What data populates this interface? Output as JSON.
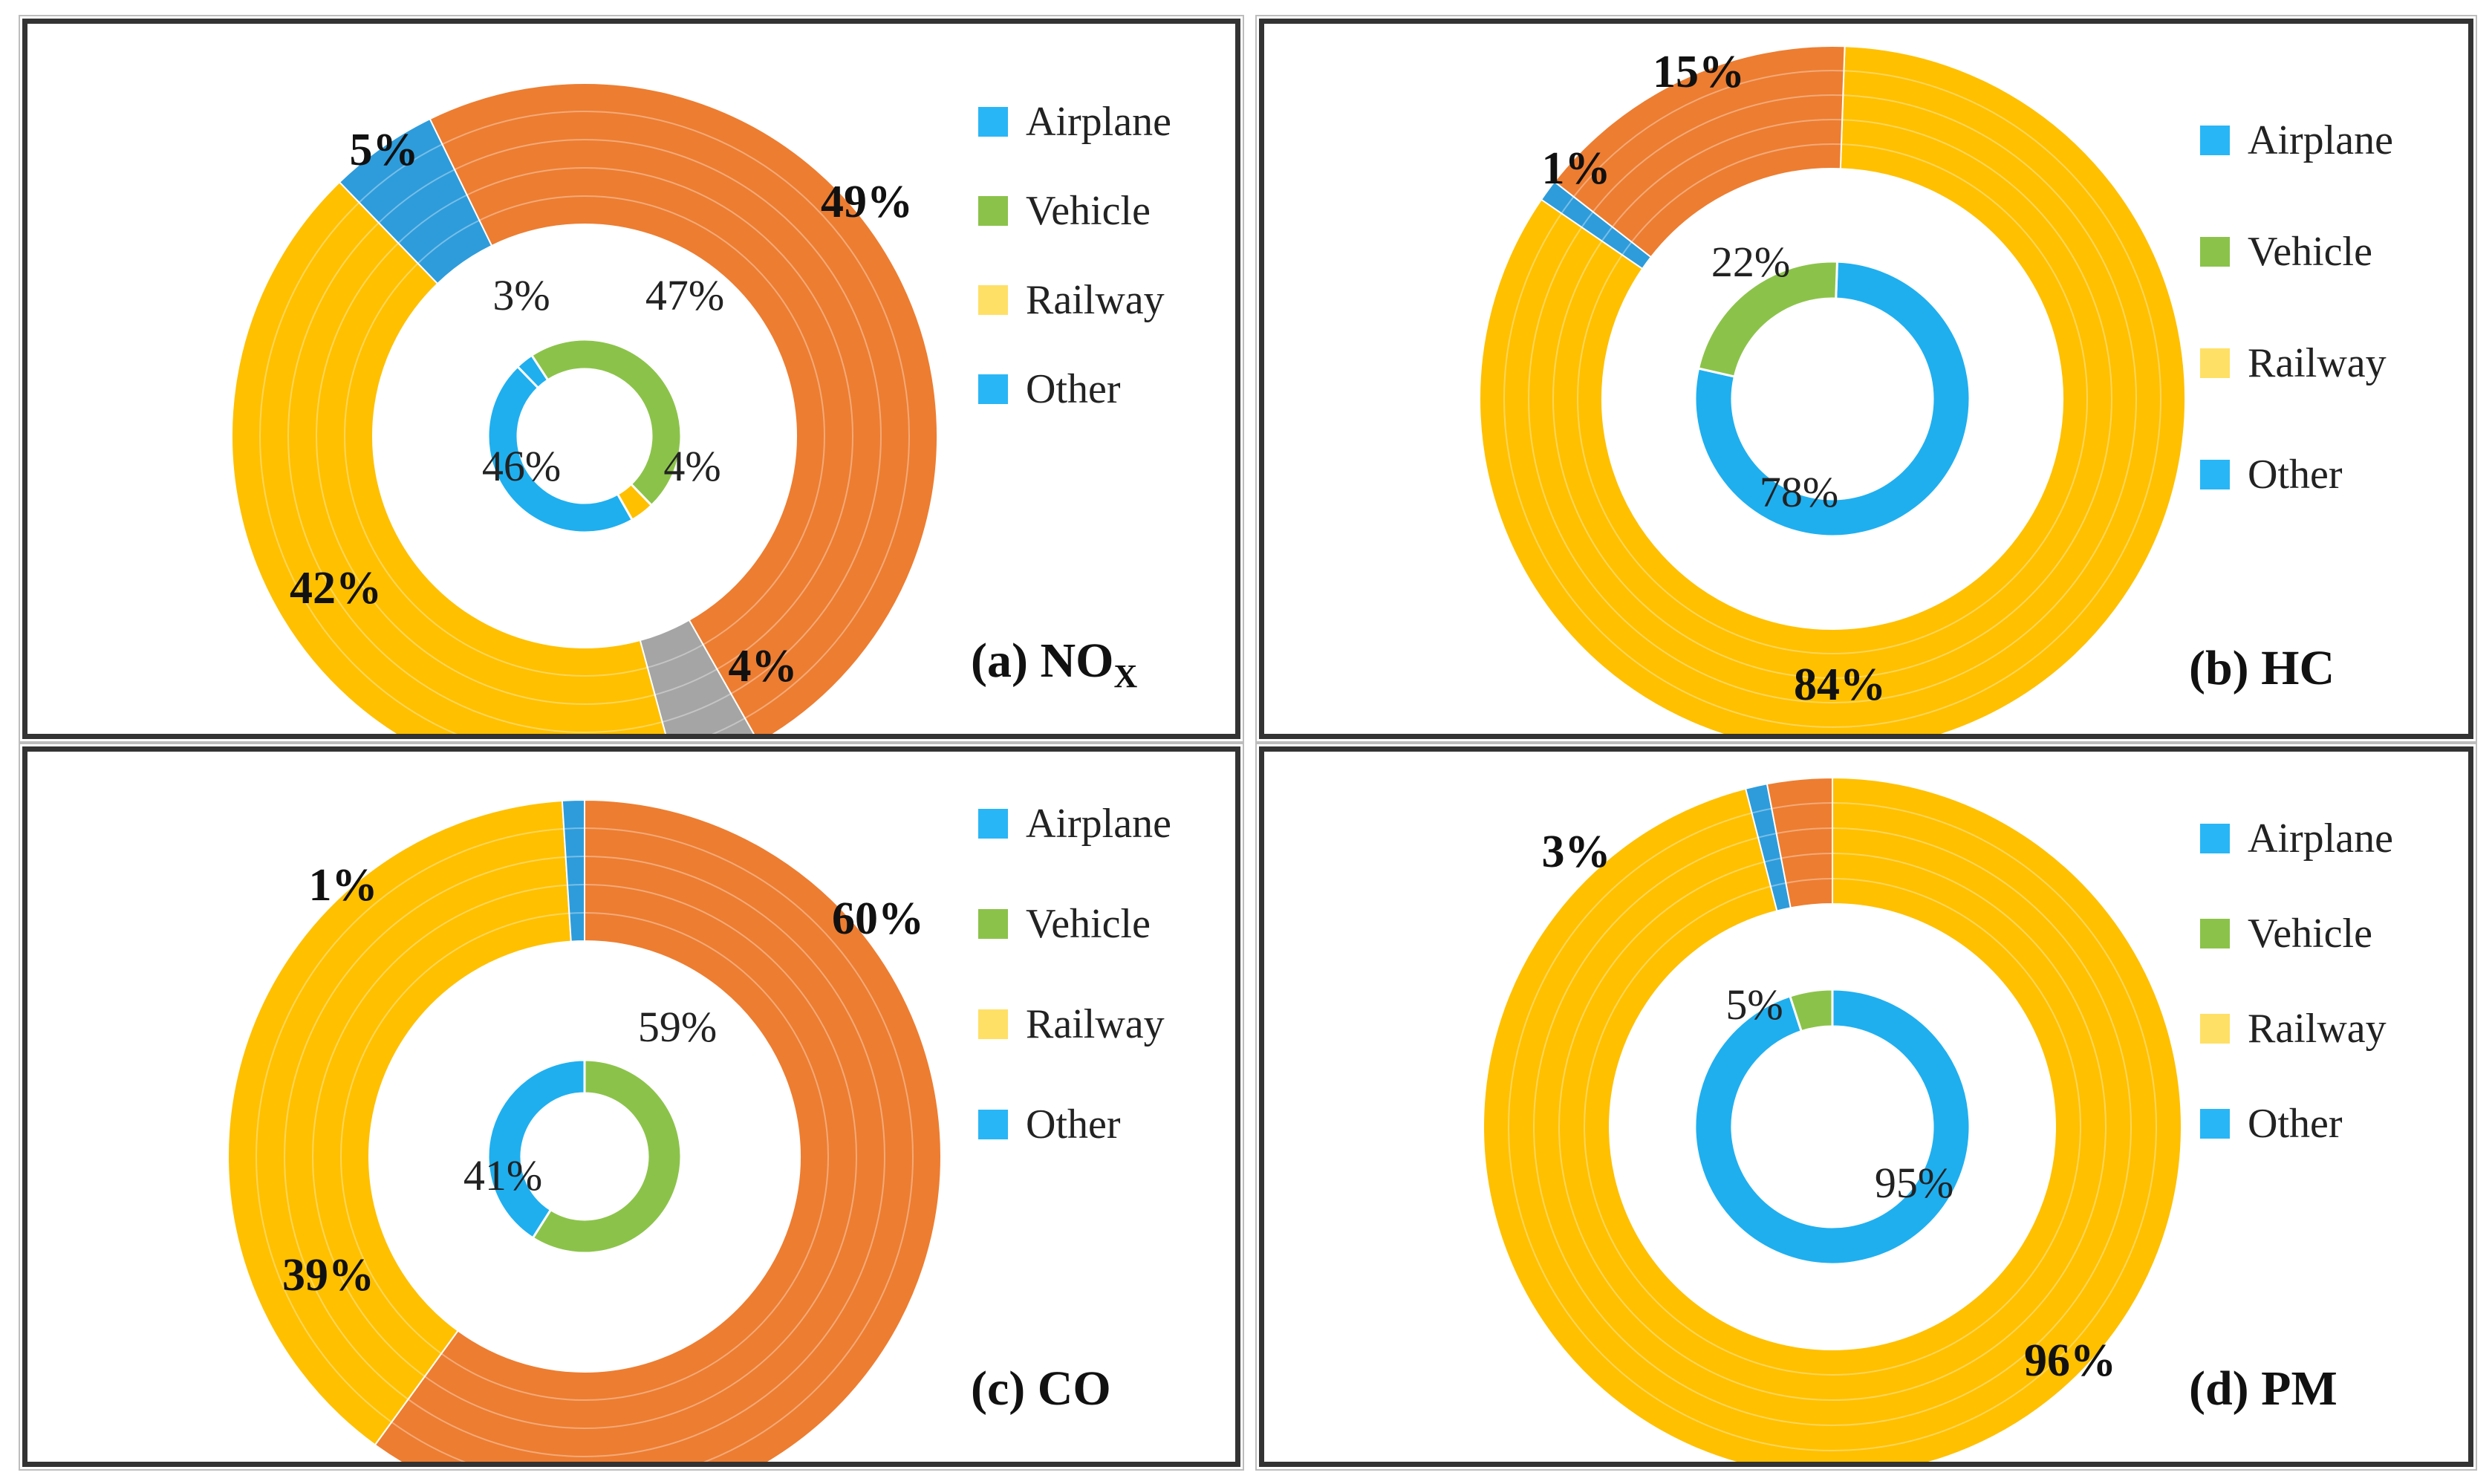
{
  "colors": {
    "airplane": "#2E9CDB",
    "vehicle": "#ED7D31",
    "railway": "#FFC000",
    "other": "#A5A5A5",
    "inner_other": "#1FAFEF",
    "inner_vehicle": "#8BC34A",
    "inner_railway": "#FFC000"
  },
  "legend": [
    {
      "label": "Airplane",
      "color": "#29B6F6"
    },
    {
      "label": "Vehicle",
      "color": "#8BC34A"
    },
    {
      "label": "Railway",
      "color": "#FFE066"
    },
    {
      "label": "Other",
      "color": "#29B6F6"
    }
  ],
  "chart_data": [
    {
      "type": "donut",
      "title": "(a) NO",
      "title_sub": "X",
      "outer": [
        {
          "category": "Airplane",
          "value": 5,
          "label": "5%"
        },
        {
          "category": "Vehicle",
          "value": 49,
          "label": "49%"
        },
        {
          "category": "Other",
          "value": 4,
          "label": "4%"
        },
        {
          "category": "Railway",
          "value": 42,
          "label": "42%"
        }
      ],
      "inner": [
        {
          "category": "Other",
          "value": 3,
          "label": "3%"
        },
        {
          "category": "Vehicle",
          "value": 47,
          "label": "47%"
        },
        {
          "category": "Railway",
          "value": 4,
          "label": "4%"
        },
        {
          "category": "Other",
          "value": 46,
          "label": "46%"
        }
      ]
    },
    {
      "type": "donut",
      "title": "(b) HC",
      "title_sub": "",
      "outer": [
        {
          "category": "Railway",
          "value": 84,
          "label": "84%"
        },
        {
          "category": "Airplane",
          "value": 1,
          "label": "1%"
        },
        {
          "category": "Vehicle",
          "value": 15,
          "label": "15%"
        }
      ],
      "inner": [
        {
          "category": "Other",
          "value": 78,
          "label": "78%"
        },
        {
          "category": "Vehicle",
          "value": 22,
          "label": "22%"
        }
      ]
    },
    {
      "type": "donut",
      "title": "(c) CO",
      "title_sub": "",
      "outer": [
        {
          "category": "Vehicle",
          "value": 60,
          "label": "60%"
        },
        {
          "category": "Railway",
          "value": 39,
          "label": "39%"
        },
        {
          "category": "Airplane",
          "value": 1,
          "label": "1%"
        }
      ],
      "inner": [
        {
          "category": "Vehicle",
          "value": 59,
          "label": "59%"
        },
        {
          "category": "Other",
          "value": 41,
          "label": "41%"
        }
      ]
    },
    {
      "type": "donut",
      "title": "(d) PM",
      "title_sub": "",
      "outer": [
        {
          "category": "Railway",
          "value": 96,
          "label": "96%"
        },
        {
          "category": "Airplane",
          "value": 1,
          "label": ""
        },
        {
          "category": "Vehicle",
          "value": 3,
          "label": "3%"
        }
      ],
      "inner": [
        {
          "category": "Other",
          "value": 95,
          "label": "95%"
        },
        {
          "category": "Vehicle",
          "value": 5,
          "label": "5%"
        }
      ]
    }
  ]
}
